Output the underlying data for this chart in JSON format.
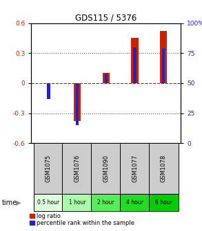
{
  "title": "GDS115 / 5376",
  "samples": [
    "GSM1075",
    "GSM1076",
    "GSM1090",
    "GSM1077",
    "GSM1078"
  ],
  "time_labels": [
    "0.5 hour",
    "1 hour",
    "2 hour",
    "4 hour",
    "6 hour"
  ],
  "time_colors": [
    "#dfffdf",
    "#aaffaa",
    "#55ee55",
    "#22dd22",
    "#00cc00"
  ],
  "log_ratios": [
    0.0,
    -0.38,
    0.1,
    0.45,
    0.52
  ],
  "percentile_ranks": [
    37,
    15,
    58,
    80,
    79
  ],
  "ylim_left": [
    -0.6,
    0.6
  ],
  "ylim_right": [
    0,
    100
  ],
  "yticks_left": [
    -0.6,
    -0.3,
    0.0,
    0.3,
    0.6
  ],
  "yticks_right": [
    0,
    25,
    50,
    75,
    100
  ],
  "bar_color_red": "#cc2200",
  "bar_color_blue": "#2222cc",
  "dotted_line_color": "#555555",
  "zero_line_color": "#cc0000",
  "legend_red_label": "log ratio",
  "legend_blue_label": "percentile rank within the sample",
  "sample_label_color": "#cccccc",
  "time_arrow_color": "#888888"
}
